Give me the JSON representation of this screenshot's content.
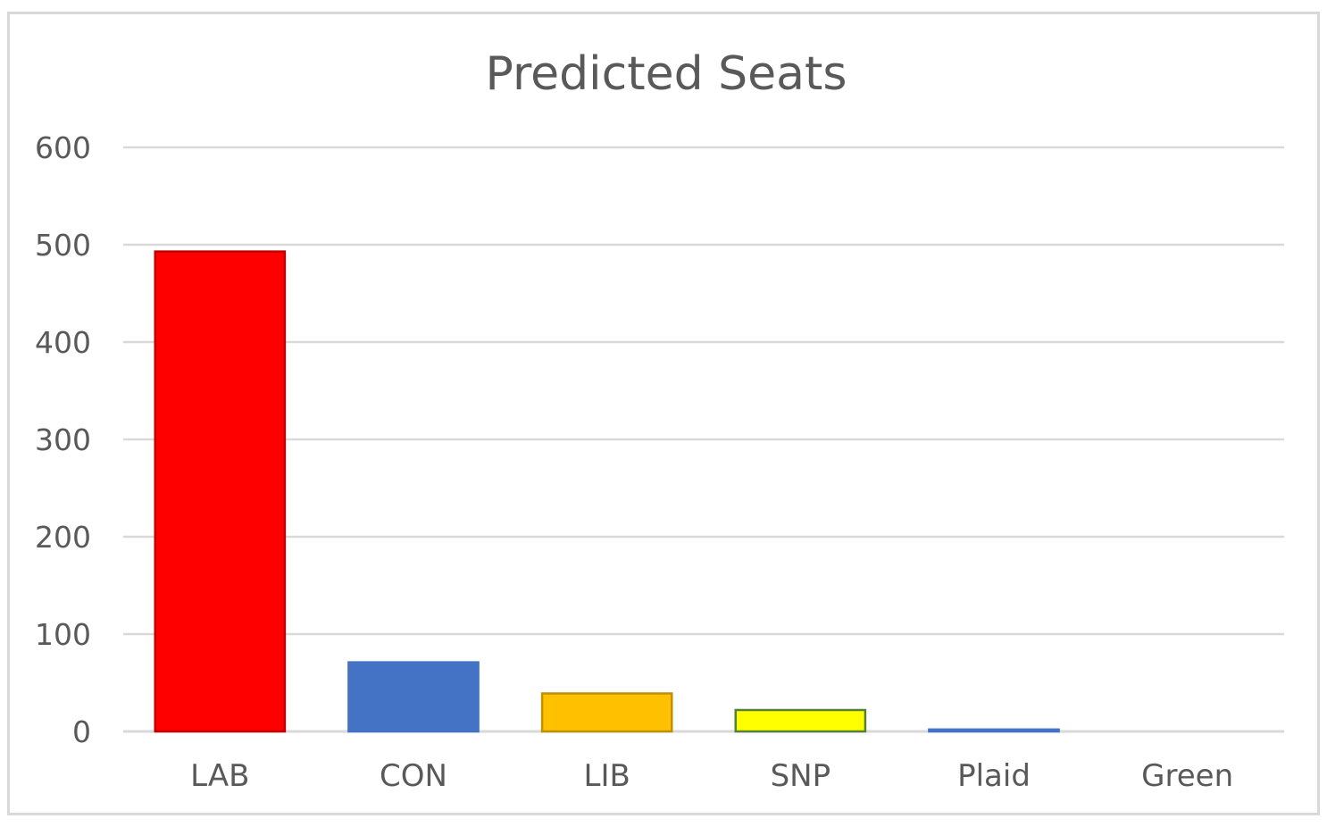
{
  "chart_data": {
    "type": "bar",
    "title": "Predicted Seats",
    "xlabel": "",
    "ylabel": "",
    "categories": [
      "LAB",
      "CON",
      "LIB",
      "SNP",
      "Plaid",
      "Green"
    ],
    "values": [
      493,
      71,
      39,
      22,
      2,
      0
    ],
    "ylim": [
      0,
      600
    ],
    "yticks": [
      "0",
      "100",
      "200",
      "300",
      "400",
      "500",
      "600"
    ],
    "grid": true,
    "legend": "none",
    "bar_colors": [
      "#ff0000",
      "#4472c4",
      "#ffc000",
      "#ffff00",
      "#4472c4",
      "#70ad47"
    ],
    "bar_outlines": [
      "#c00000",
      "#4472c4",
      "#bf9000",
      "#548235",
      "#4472c4",
      "#70ad47"
    ]
  }
}
